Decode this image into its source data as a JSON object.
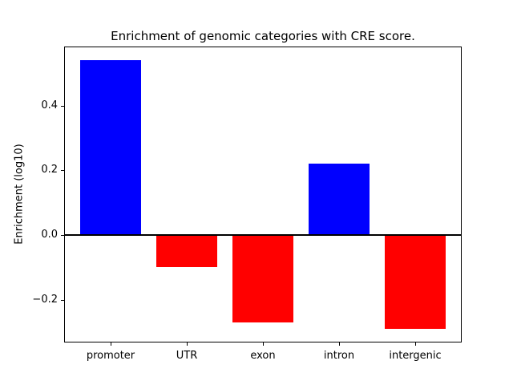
{
  "chart_data": {
    "type": "bar",
    "title": "Enrichment of genomic categories with CRE score.",
    "xlabel": "",
    "ylabel": "Enrichment (log10)",
    "categories": [
      "promoter",
      "UTR",
      "exon",
      "intron",
      "intergenic"
    ],
    "values": [
      0.54,
      -0.1,
      -0.27,
      0.22,
      -0.29
    ],
    "bar_colors": [
      "#0000ff",
      "#ff0000",
      "#ff0000",
      "#0000ff",
      "#ff0000"
    ],
    "positive_color": "#0000ff",
    "negative_color": "#ff0000",
    "bar_width": 0.8,
    "xlim": [
      -0.6,
      4.6
    ],
    "ylim": [
      -0.33,
      0.58
    ],
    "yticks": [
      0.4,
      0.2,
      0.0,
      -0.2
    ],
    "ytick_labels": [
      "0.4",
      "0.2",
      "0.0",
      "−0.2"
    ],
    "zero_line": true,
    "zero_line_color": "#000000",
    "grid": false,
    "legend": false,
    "background": "#ffffff",
    "axis_color": "#000000"
  }
}
